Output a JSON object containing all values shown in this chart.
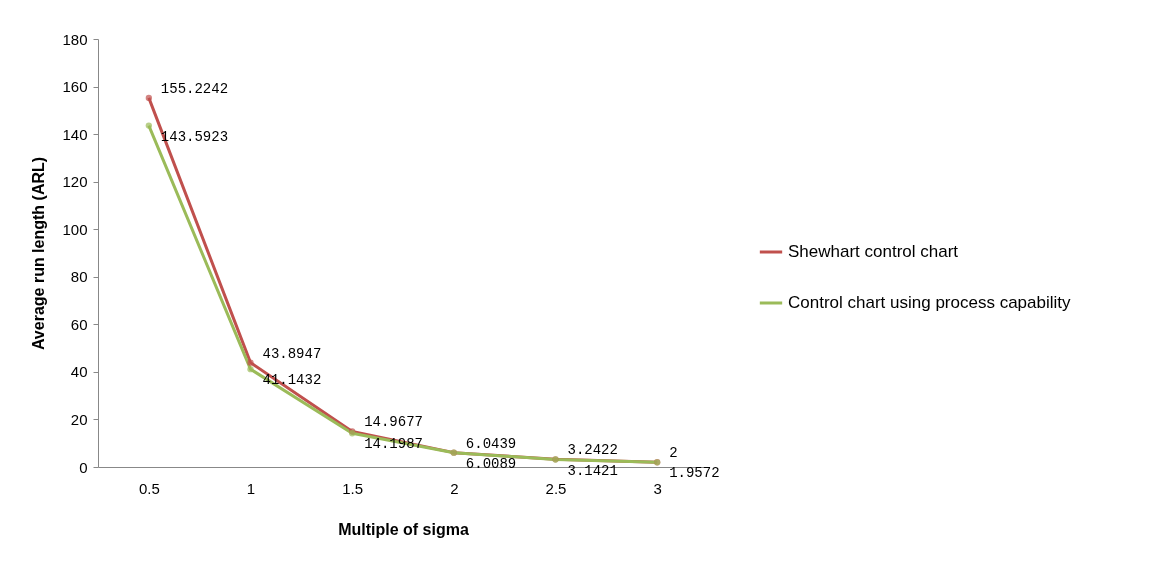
{
  "chart_data": {
    "type": "line",
    "xlabel": "Multiple of sigma",
    "ylabel": "Average run length (ARL)",
    "categories": [
      "0.5",
      "1",
      "1.5",
      "2",
      "2.5",
      "3"
    ],
    "series": [
      {
        "name": "Shewhart control chart",
        "color": "#c0504d",
        "values": [
          155.2242,
          43.8947,
          14.9677,
          6.0439,
          3.2422,
          2
        ],
        "value_labels": [
          "155.2242",
          "43.8947",
          "14.9677",
          "6.0439",
          "3.2422",
          "2"
        ]
      },
      {
        "name": "Control chart using process capability",
        "color": "#9bbb59",
        "values": [
          143.5923,
          41.1432,
          14.1987,
          6.0089,
          3.1421,
          1.9572
        ],
        "value_labels": [
          "143.5923",
          "41.1432",
          "14.1987",
          "6.0089",
          "3.1421",
          "1.9572"
        ]
      }
    ],
    "ylim": [
      0,
      180
    ],
    "yticks": [
      0,
      20,
      40,
      60,
      80,
      100,
      120,
      140,
      160,
      180
    ],
    "grid": false,
    "legend": "right",
    "marker": "circle",
    "line_style": "solid"
  }
}
